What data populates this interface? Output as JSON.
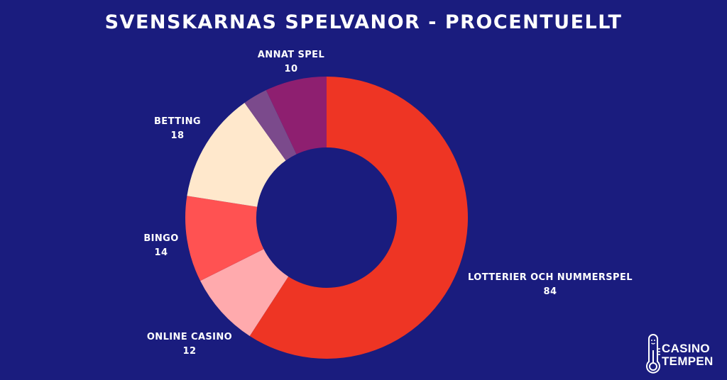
{
  "title": "Svenskarnas spelvanor - procentuellt",
  "background_color": "#1a1c7e",
  "labels": {
    "lotterier": {
      "name": "Lotterier och nummerspel",
      "value": "84"
    },
    "online_casino": {
      "name": "Online casino",
      "value": "12"
    },
    "bingo": {
      "name": "Bingo",
      "value": "14"
    },
    "betting": {
      "name": "Betting",
      "value": "18"
    },
    "annat_spel": {
      "name": "Annat spel",
      "value": "10"
    }
  },
  "logo": {
    "line1": "CASINO",
    "line2": "TEMPEN",
    "icon": "thermometer-icon"
  },
  "chart_data": {
    "type": "pie",
    "subtype": "donut",
    "title": "Svenskarnas spelvanor - procentuellt",
    "categories": [
      "Lotterier och nummerspel",
      "Online casino",
      "Bingo",
      "Betting",
      "(unlabeled)",
      "Annat spel"
    ],
    "values": [
      84,
      12,
      14,
      18,
      4,
      10
    ],
    "colors": [
      "#ee3524",
      "#ffaaad",
      "#ff5252",
      "#ffe8cc",
      "#7b4a8c",
      "#8e1f70"
    ],
    "start_angle_deg": 0,
    "direction": "clockwise",
    "center": [
      460,
      307
    ],
    "outer_radius": 199,
    "inner_radius": 99,
    "legend_position": "none (data labels beside slices)"
  }
}
